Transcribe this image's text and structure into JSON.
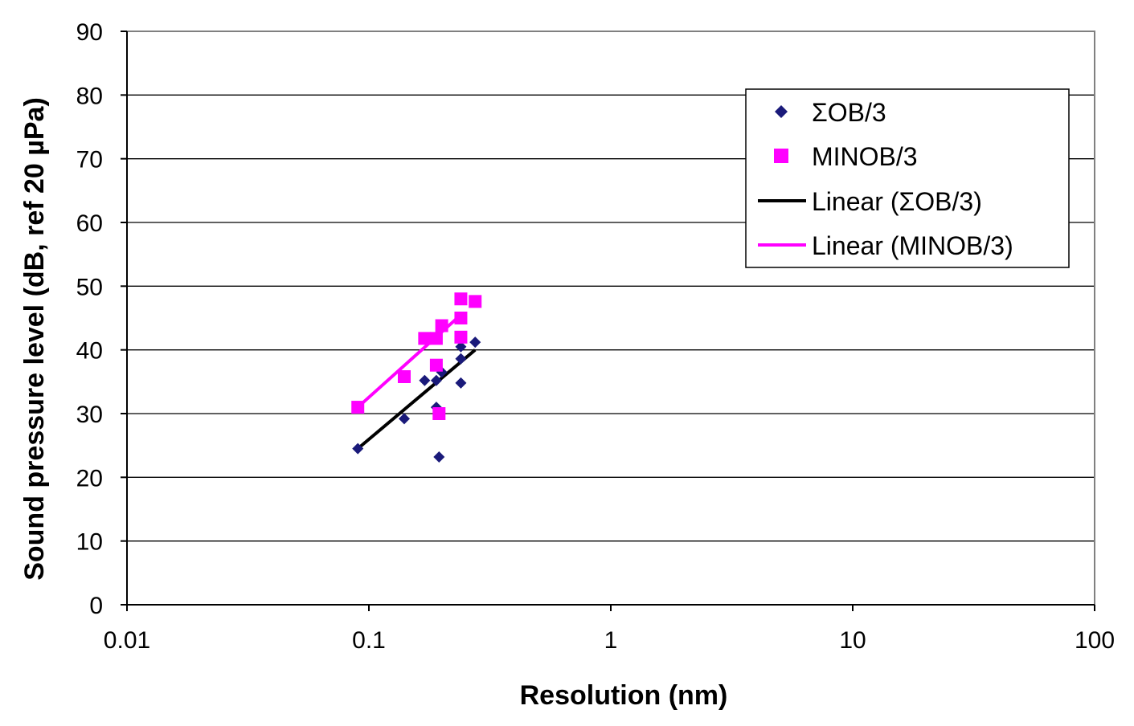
{
  "chart_data": {
    "type": "scatter",
    "title": "",
    "xlabel": "Resolution (nm)",
    "ylabel": "Sound pressure level (dB, ref 20 µPa)",
    "xscale": "log",
    "xlim": [
      0.01,
      100
    ],
    "ylim": [
      0,
      90
    ],
    "x_ticks": [
      0.01,
      0.1,
      1,
      10,
      100
    ],
    "x_tick_labels": [
      "0.01",
      "0.1",
      "1",
      "10",
      "100"
    ],
    "y_ticks": [
      0,
      10,
      20,
      30,
      40,
      50,
      60,
      70,
      80,
      90
    ],
    "y_tick_labels": [
      "0",
      "10",
      "20",
      "30",
      "40",
      "50",
      "60",
      "70",
      "80",
      "90"
    ],
    "grid": "horizontal",
    "legend_position": "top-right",
    "series": [
      {
        "name": "ΣOB/3",
        "kind": "scatter",
        "marker": "diamond",
        "color": "#1a1a7a",
        "points": [
          [
            0.09,
            24.5
          ],
          [
            0.14,
            29.2
          ],
          [
            0.17,
            35.2
          ],
          [
            0.19,
            35.2
          ],
          [
            0.19,
            31.0
          ],
          [
            0.195,
            23.2
          ],
          [
            0.2,
            36.5
          ],
          [
            0.24,
            40.5
          ],
          [
            0.24,
            38.6
          ],
          [
            0.24,
            34.8
          ],
          [
            0.275,
            41.2
          ]
        ]
      },
      {
        "name": "MINOB/3",
        "kind": "scatter",
        "marker": "square",
        "color": "#ff00ff",
        "points": [
          [
            0.09,
            31.0
          ],
          [
            0.14,
            35.8
          ],
          [
            0.17,
            41.8
          ],
          [
            0.19,
            41.8
          ],
          [
            0.19,
            37.6
          ],
          [
            0.195,
            30.0
          ],
          [
            0.2,
            43.8
          ],
          [
            0.24,
            48.0
          ],
          [
            0.24,
            45.0
          ],
          [
            0.24,
            42.0
          ],
          [
            0.275,
            47.6
          ]
        ]
      },
      {
        "name": "Linear (ΣOB/3)",
        "kind": "trendline",
        "color": "#000000",
        "points": [
          [
            0.09,
            24.5
          ],
          [
            0.275,
            40.0
          ]
        ]
      },
      {
        "name": "Linear (MINOB/3)",
        "kind": "trendline",
        "color": "#ff00ff",
        "points": [
          [
            0.09,
            31.0
          ],
          [
            0.24,
            45.5
          ]
        ]
      }
    ]
  }
}
